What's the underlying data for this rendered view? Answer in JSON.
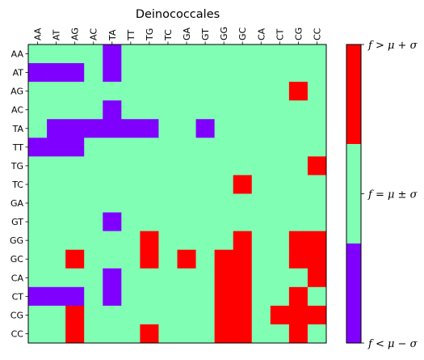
{
  "chart_data": {
    "type": "heatmap",
    "title": "Deinococcales",
    "row_labels": [
      "AA",
      "AT",
      "AG",
      "AC",
      "TA",
      "TT",
      "TG",
      "TC",
      "GA",
      "GT",
      "GG",
      "GC",
      "CA",
      "CT",
      "CG",
      "CC"
    ],
    "col_labels": [
      "AA",
      "AT",
      "AG",
      "AC",
      "TA",
      "TT",
      "TG",
      "TC",
      "GA",
      "GT",
      "GG",
      "GC",
      "CA",
      "CT",
      "CG",
      "CC"
    ],
    "value_legend": {
      "-1": "below",
      "0": "within",
      "1": "above"
    },
    "matrix": [
      [
        0,
        0,
        0,
        0,
        -1,
        0,
        0,
        0,
        0,
        0,
        0,
        0,
        0,
        0,
        0,
        0
      ],
      [
        -1,
        -1,
        -1,
        0,
        -1,
        0,
        0,
        0,
        0,
        0,
        0,
        0,
        0,
        0,
        0,
        0
      ],
      [
        0,
        0,
        0,
        0,
        0,
        0,
        0,
        0,
        0,
        0,
        0,
        0,
        0,
        0,
        1,
        0
      ],
      [
        0,
        0,
        0,
        0,
        -1,
        0,
        0,
        0,
        0,
        0,
        0,
        0,
        0,
        0,
        0,
        0
      ],
      [
        0,
        -1,
        -1,
        -1,
        -1,
        -1,
        -1,
        0,
        0,
        -1,
        0,
        0,
        0,
        0,
        0,
        0
      ],
      [
        -1,
        -1,
        -1,
        0,
        0,
        0,
        0,
        0,
        0,
        0,
        0,
        0,
        0,
        0,
        0,
        0
      ],
      [
        0,
        0,
        0,
        0,
        0,
        0,
        0,
        0,
        0,
        0,
        0,
        0,
        0,
        0,
        0,
        1
      ],
      [
        0,
        0,
        0,
        0,
        0,
        0,
        0,
        0,
        0,
        0,
        0,
        1,
        0,
        0,
        0,
        0
      ],
      [
        0,
        0,
        0,
        0,
        0,
        0,
        0,
        0,
        0,
        0,
        0,
        0,
        0,
        0,
        0,
        0
      ],
      [
        0,
        0,
        0,
        0,
        -1,
        0,
        0,
        0,
        0,
        0,
        0,
        0,
        0,
        0,
        0,
        0
      ],
      [
        0,
        0,
        0,
        0,
        0,
        0,
        1,
        0,
        0,
        0,
        0,
        1,
        0,
        0,
        1,
        1
      ],
      [
        0,
        0,
        1,
        0,
        0,
        0,
        1,
        0,
        1,
        0,
        1,
        1,
        0,
        0,
        1,
        1
      ],
      [
        0,
        0,
        0,
        0,
        -1,
        0,
        0,
        0,
        0,
        0,
        1,
        1,
        0,
        0,
        0,
        1
      ],
      [
        -1,
        -1,
        -1,
        0,
        -1,
        0,
        0,
        0,
        0,
        0,
        1,
        1,
        0,
        0,
        1,
        0
      ],
      [
        0,
        0,
        1,
        0,
        0,
        0,
        0,
        0,
        0,
        0,
        1,
        1,
        0,
        1,
        1,
        1
      ],
      [
        0,
        0,
        1,
        0,
        0,
        0,
        1,
        0,
        0,
        0,
        1,
        1,
        0,
        0,
        1,
        0
      ]
    ],
    "colors": {
      "below": "#8000ff",
      "within": "#80ffb4",
      "above": "#ff0000"
    },
    "colorbar": {
      "labels": [
        "f > μ + σ",
        "f = μ ± σ",
        "f < μ − σ"
      ]
    }
  }
}
